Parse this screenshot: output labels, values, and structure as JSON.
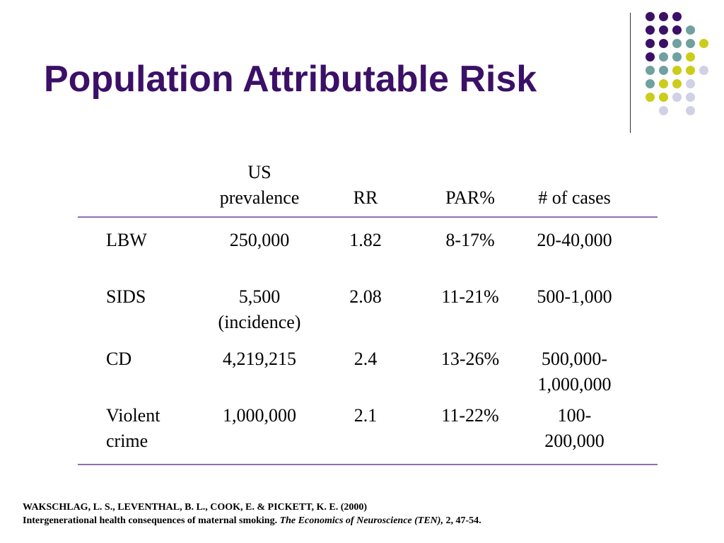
{
  "slide": {
    "title": "Population Attributable Risk"
  },
  "decoration": {
    "colors": {
      "purple": "#3b1066",
      "teal": "#70a0a0",
      "yellow": "#cccc1a",
      "lavender": "#d0d0e6",
      "rule": "#8e6fb2"
    }
  },
  "table": {
    "headers": [
      "",
      "US\nprevalence",
      "RR",
      "PAR%",
      "# of cases"
    ],
    "rows": [
      [
        "LBW",
        "250,000",
        "1.82",
        "8-17%",
        "20-40,000"
      ],
      [
        "SIDS",
        "5,500\n(incidence)",
        "2.08",
        "11-21%",
        "500-1,000"
      ],
      [
        "CD",
        "4,219,215",
        "2.4",
        "13-26%",
        "500,000-\n1,000,000"
      ],
      [
        "Violent\ncrime",
        "1,000,000",
        "2.1",
        "11-22%",
        "100-\n200,000"
      ]
    ]
  },
  "citation": {
    "authors": "WAKSCHLAG, L. S., LEVENTHAL, B. L., COOK, E. & PICKETT, K. E. (2000)",
    "title": "Intergenerational health consequences of maternal smoking. ",
    "journal": "The Economics of Neuroscience (TEN),",
    "details": " 2, 47-54."
  }
}
